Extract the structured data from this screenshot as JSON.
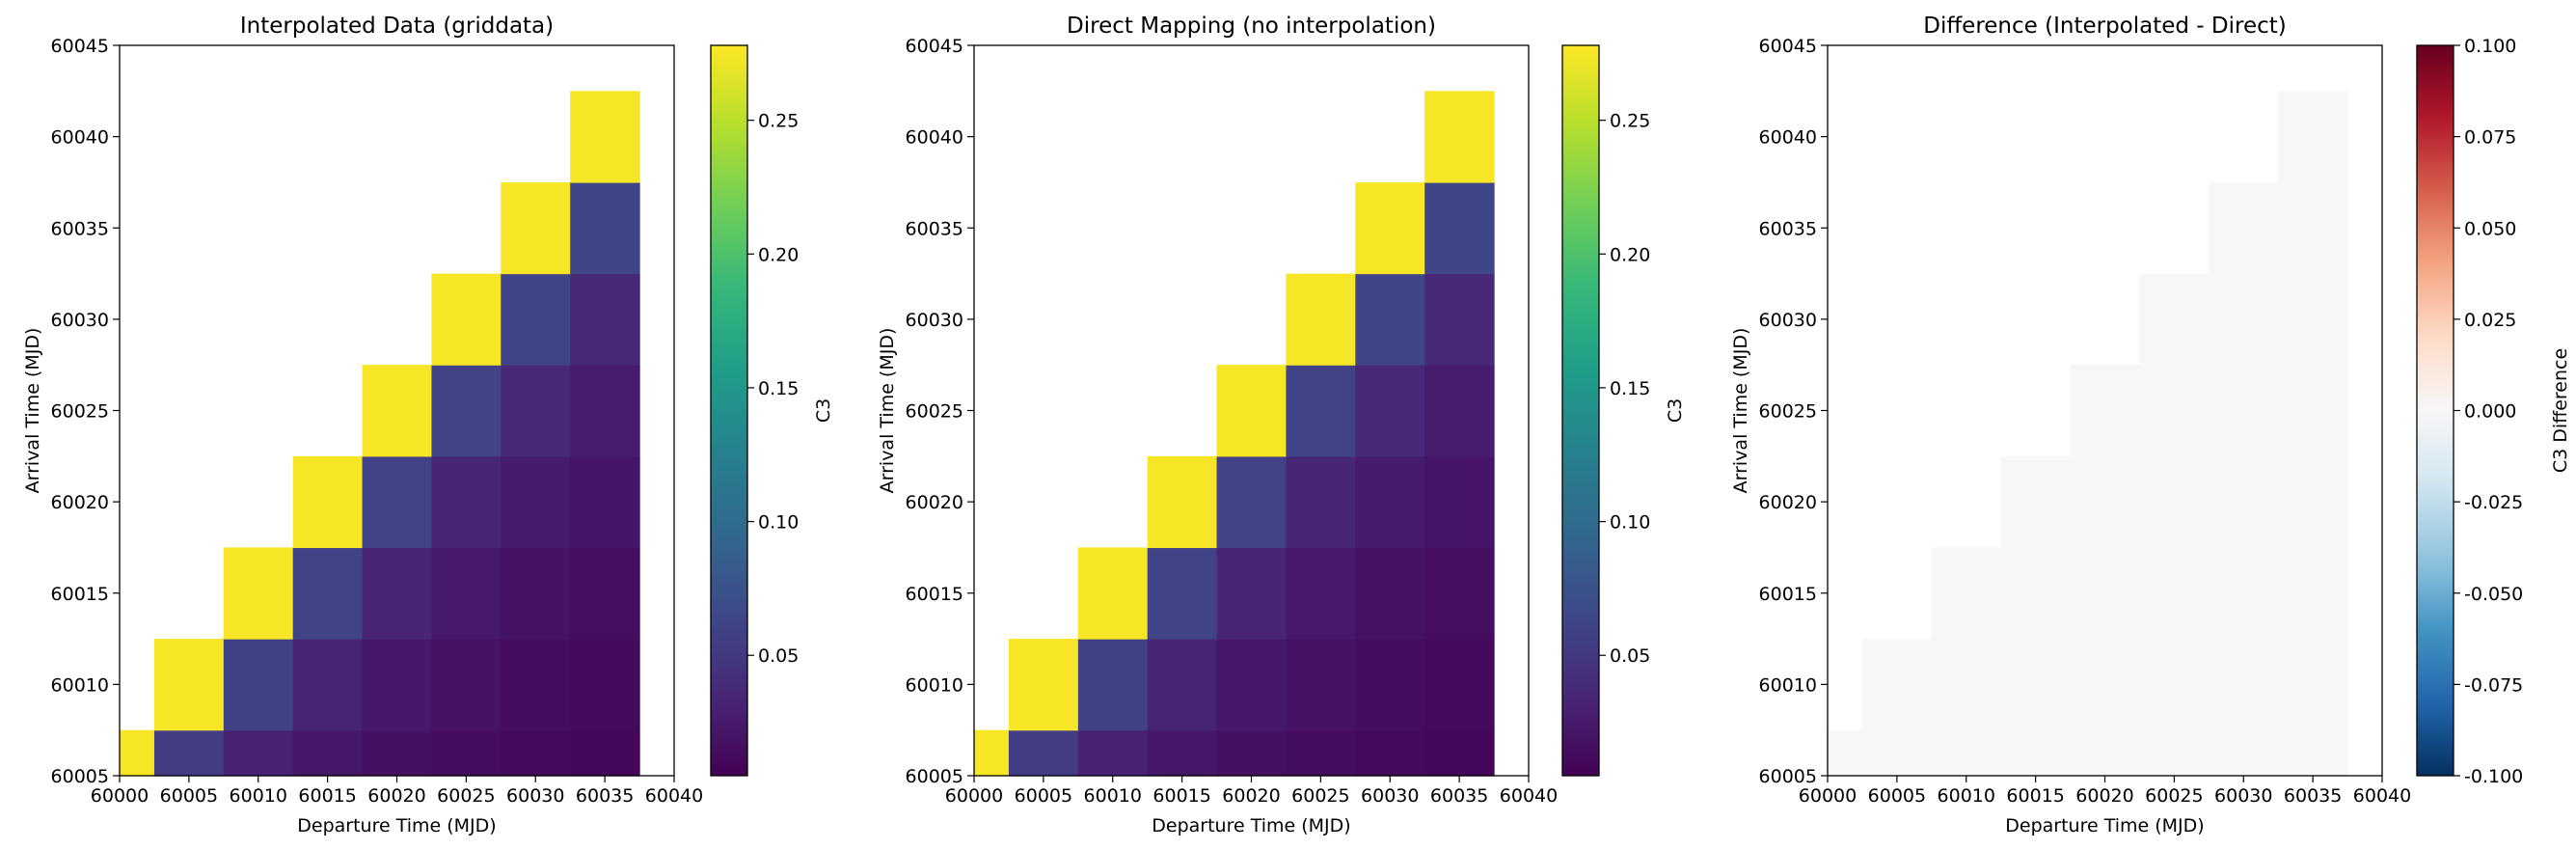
{
  "chart_data": [
    {
      "type": "heatmap",
      "title": "Interpolated Data (griddata)",
      "xlabel": "Departure Time (MJD)",
      "ylabel": "Arrival Time (MJD)",
      "colorbar_label": "C3",
      "colormap": "viridis",
      "xlim": [
        60000,
        60040
      ],
      "ylim": [
        60005,
        60045
      ],
      "x_ticks": [
        "60000",
        "60005",
        "60010",
        "60015",
        "60020",
        "60025",
        "60030",
        "60035",
        "60040"
      ],
      "y_ticks": [
        "60005",
        "60010",
        "60015",
        "60020",
        "60025",
        "60030",
        "60035",
        "60040",
        "60045"
      ],
      "colorbar_ticks": [
        "0.05",
        "0.10",
        "0.15",
        "0.20",
        "0.25"
      ],
      "colorbar_tick_values": [
        0.05,
        0.1,
        0.15,
        0.2,
        0.25
      ],
      "clim": [
        0.005,
        0.278
      ],
      "departure": [
        60000,
        60005,
        60010,
        60015,
        60020,
        60025,
        60030,
        60035
      ],
      "arrival": [
        60005,
        60010,
        60015,
        60020,
        60025,
        60030,
        60035,
        60040
      ],
      "values": [
        [
          0.275,
          0.055,
          0.03,
          0.022,
          0.017,
          0.014,
          0.011,
          0.01
        ],
        [
          null,
          0.275,
          0.058,
          0.032,
          0.023,
          0.018,
          0.014,
          0.012
        ],
        [
          null,
          null,
          0.275,
          0.06,
          0.033,
          0.024,
          0.018,
          0.015
        ],
        [
          null,
          null,
          null,
          0.275,
          0.06,
          0.034,
          0.025,
          0.02
        ],
        [
          null,
          null,
          null,
          null,
          0.275,
          0.061,
          0.035,
          0.026
        ],
        [
          null,
          null,
          null,
          null,
          null,
          0.275,
          0.062,
          0.036
        ],
        [
          null,
          null,
          null,
          null,
          null,
          null,
          0.275,
          0.063
        ],
        [
          null,
          null,
          null,
          null,
          null,
          null,
          null,
          0.275
        ]
      ]
    },
    {
      "type": "heatmap",
      "title": "Direct Mapping (no interpolation)",
      "xlabel": "Departure Time (MJD)",
      "ylabel": "Arrival Time (MJD)",
      "colorbar_label": "C3",
      "colormap": "viridis",
      "xlim": [
        60000,
        60040
      ],
      "ylim": [
        60005,
        60045
      ],
      "x_ticks": [
        "60000",
        "60005",
        "60010",
        "60015",
        "60020",
        "60025",
        "60030",
        "60035",
        "60040"
      ],
      "y_ticks": [
        "60005",
        "60010",
        "60015",
        "60020",
        "60025",
        "60030",
        "60035",
        "60040",
        "60045"
      ],
      "colorbar_ticks": [
        "0.05",
        "0.10",
        "0.15",
        "0.20",
        "0.25"
      ],
      "colorbar_tick_values": [
        0.05,
        0.1,
        0.15,
        0.2,
        0.25
      ],
      "clim": [
        0.005,
        0.278
      ],
      "departure": [
        60000,
        60005,
        60010,
        60015,
        60020,
        60025,
        60030,
        60035
      ],
      "arrival": [
        60005,
        60010,
        60015,
        60020,
        60025,
        60030,
        60035,
        60040
      ],
      "values": [
        [
          0.275,
          0.055,
          0.03,
          0.022,
          0.017,
          0.014,
          0.011,
          0.01
        ],
        [
          null,
          0.275,
          0.058,
          0.032,
          0.023,
          0.018,
          0.014,
          0.012
        ],
        [
          null,
          null,
          0.275,
          0.06,
          0.033,
          0.024,
          0.018,
          0.015
        ],
        [
          null,
          null,
          null,
          0.275,
          0.06,
          0.034,
          0.025,
          0.02
        ],
        [
          null,
          null,
          null,
          null,
          0.275,
          0.061,
          0.035,
          0.026
        ],
        [
          null,
          null,
          null,
          null,
          null,
          0.275,
          0.062,
          0.036
        ],
        [
          null,
          null,
          null,
          null,
          null,
          null,
          0.275,
          0.063
        ],
        [
          null,
          null,
          null,
          null,
          null,
          null,
          null,
          0.275
        ]
      ]
    },
    {
      "type": "heatmap",
      "title": "Difference (Interpolated - Direct)",
      "xlabel": "Departure Time (MJD)",
      "ylabel": "Arrival Time (MJD)",
      "colorbar_label": "C3 Difference",
      "colormap": "RdBu_r",
      "xlim": [
        60000,
        60040
      ],
      "ylim": [
        60005,
        60045
      ],
      "x_ticks": [
        "60000",
        "60005",
        "60010",
        "60015",
        "60020",
        "60025",
        "60030",
        "60035",
        "60040"
      ],
      "y_ticks": [
        "60005",
        "60010",
        "60015",
        "60020",
        "60025",
        "60030",
        "60035",
        "60040",
        "60045"
      ],
      "colorbar_ticks": [
        "-0.100",
        "-0.075",
        "-0.050",
        "-0.025",
        "0.000",
        "0.025",
        "0.050",
        "0.075",
        "0.100"
      ],
      "colorbar_tick_values": [
        -0.1,
        -0.075,
        -0.05,
        -0.025,
        0.0,
        0.025,
        0.05,
        0.075,
        0.1
      ],
      "clim": [
        -0.1,
        0.1
      ],
      "departure": [
        60000,
        60005,
        60010,
        60015,
        60020,
        60025,
        60030,
        60035
      ],
      "arrival": [
        60005,
        60010,
        60015,
        60020,
        60025,
        60030,
        60035,
        60040
      ],
      "values": [
        [
          0,
          0,
          0,
          0,
          0,
          0,
          0,
          0
        ],
        [
          null,
          0,
          0,
          0,
          0,
          0,
          0,
          0
        ],
        [
          null,
          null,
          0,
          0,
          0,
          0,
          0,
          0
        ],
        [
          null,
          null,
          null,
          0,
          0,
          0,
          0,
          0
        ],
        [
          null,
          null,
          null,
          null,
          0,
          0,
          0,
          0
        ],
        [
          null,
          null,
          null,
          null,
          null,
          0,
          0,
          0
        ],
        [
          null,
          null,
          null,
          null,
          null,
          null,
          0,
          0
        ],
        [
          null,
          null,
          null,
          null,
          null,
          null,
          null,
          0
        ]
      ]
    }
  ]
}
